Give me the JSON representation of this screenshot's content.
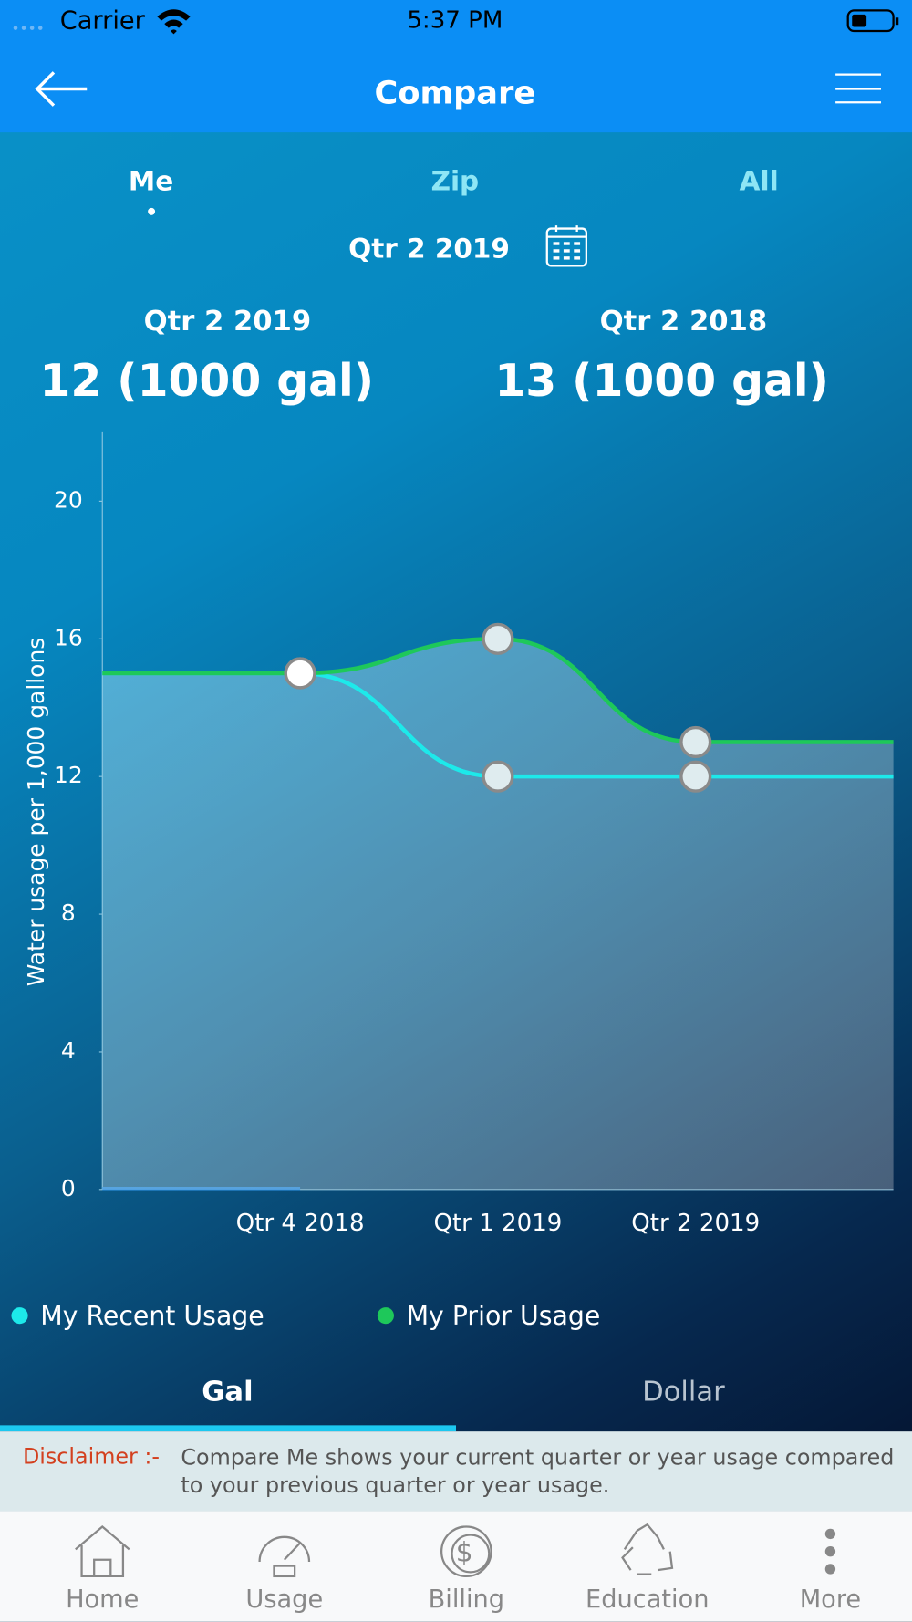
{
  "status_bar": {
    "carrier": "Carrier",
    "time": "5:37 PM"
  },
  "header": {
    "title": "Compare"
  },
  "compare_tabs": [
    "Me",
    "Zip",
    "All"
  ],
  "period": "Qtr 2 2019",
  "summary": [
    {
      "period": "Qtr 2 2019",
      "value": "12 (1000 gal)"
    },
    {
      "period": "Qtr 2 2018",
      "value": "13 (1000 gal)"
    }
  ],
  "chart_data": {
    "type": "line",
    "y_label": "Water usage per 1,000 gallons",
    "categories": [
      "Qtr 4 2018",
      "Qtr 1 2019",
      "Qtr 2 2019"
    ],
    "series": [
      {
        "name": "My Recent Usage",
        "color": "#1de9ea",
        "values": [
          15,
          12,
          12
        ]
      },
      {
        "name": "My Prior Usage",
        "color": "#1ec85a",
        "values": [
          15,
          16,
          13
        ]
      }
    ],
    "ylim": [
      0,
      22
    ],
    "yticks": [
      0,
      4,
      8,
      12,
      16,
      20
    ]
  },
  "unit_tabs": [
    "Gal",
    "Dollar"
  ],
  "disclaimer": {
    "label": "Disclaimer :-",
    "text": "Compare Me shows your current quarter or year usage compared to your previous quarter or year usage."
  },
  "nav": [
    "Home",
    "Usage",
    "Billing",
    "Education",
    "More"
  ]
}
